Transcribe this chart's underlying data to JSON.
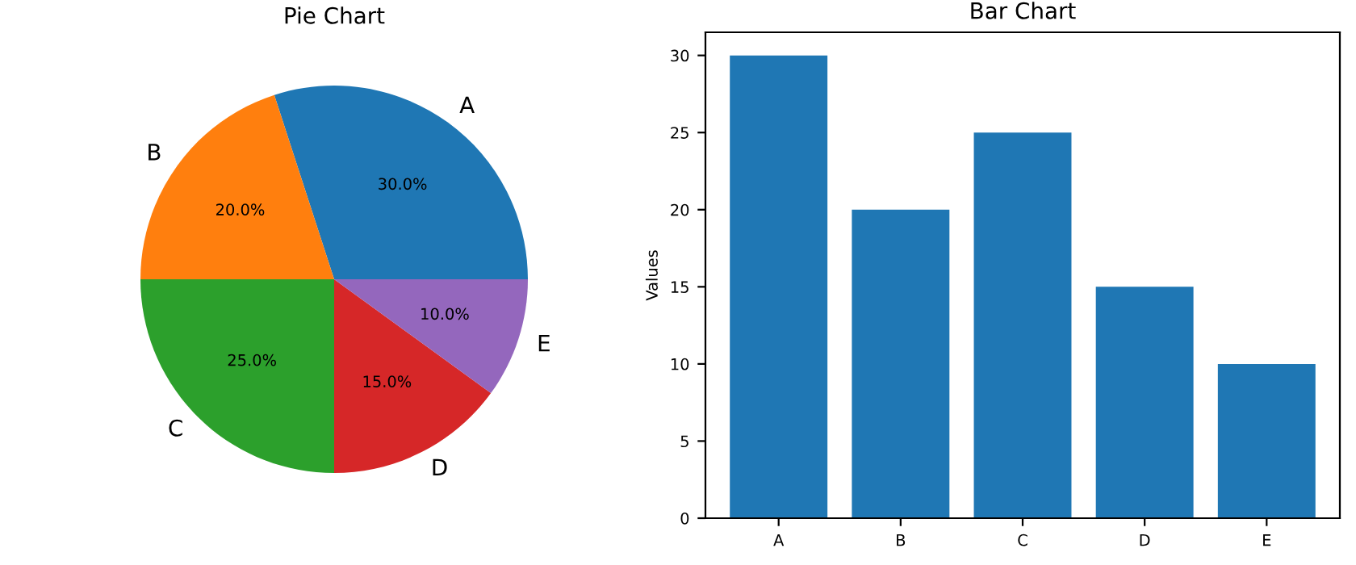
{
  "chart_data": [
    {
      "type": "pie",
      "title": "Pie Chart",
      "categories": [
        "A",
        "B",
        "C",
        "D",
        "E"
      ],
      "values": [
        30,
        20,
        25,
        15,
        10
      ],
      "colors": [
        "#1f77b4",
        "#ff7f0e",
        "#2ca02c",
        "#d62728",
        "#9467bd"
      ],
      "value_labels": [
        "30.0%",
        "20.0%",
        "25.0%",
        "15.0%",
        "10.0%"
      ]
    },
    {
      "type": "bar",
      "title": "Bar Chart",
      "ylabel": "Values",
      "categories": [
        "A",
        "B",
        "C",
        "D",
        "E"
      ],
      "series": [
        {
          "color": "#1f77b4",
          "values": [
            30,
            20,
            25,
            15,
            10
          ]
        }
      ],
      "ylim": [
        0,
        31.5
      ],
      "yticks": [
        0,
        5,
        10,
        15,
        20,
        25,
        30
      ]
    }
  ]
}
